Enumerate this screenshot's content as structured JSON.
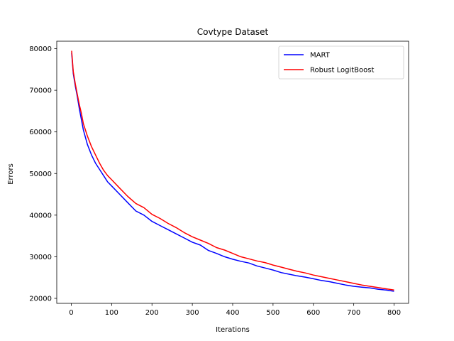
{
  "chart_data": {
    "type": "line",
    "title": "Covtype Dataset",
    "xlabel": "Iterations",
    "ylabel": "Errors",
    "xlim": [
      -36,
      836
    ],
    "ylim": [
      18800,
      81800
    ],
    "xticks": [
      0,
      100,
      200,
      300,
      400,
      500,
      600,
      700,
      800
    ],
    "yticks": [
      20000,
      30000,
      40000,
      50000,
      60000,
      70000,
      80000
    ],
    "grid": false,
    "legend_position": "upper right",
    "series": [
      {
        "name": "MART",
        "color": "#0000ff",
        "x": [
          1,
          5,
          10,
          15,
          20,
          25,
          30,
          40,
          50,
          60,
          70,
          80,
          90,
          100,
          120,
          140,
          160,
          180,
          200,
          220,
          240,
          260,
          280,
          300,
          320,
          340,
          360,
          380,
          400,
          420,
          440,
          460,
          480,
          500,
          520,
          540,
          560,
          580,
          600,
          620,
          640,
          660,
          680,
          700,
          720,
          740,
          760,
          780,
          800
        ],
        "y": [
          79000,
          74000,
          71000,
          68500,
          65500,
          63000,
          60500,
          57000,
          54500,
          52500,
          51000,
          49500,
          48000,
          47000,
          45000,
          43000,
          41000,
          40000,
          38500,
          37500,
          36500,
          35500,
          34500,
          33500,
          32800,
          31500,
          30800,
          30000,
          29400,
          28900,
          28500,
          27800,
          27300,
          26800,
          26200,
          25800,
          25400,
          25100,
          24700,
          24300,
          24000,
          23600,
          23200,
          22900,
          22700,
          22500,
          22200,
          22000,
          21700
        ]
      },
      {
        "name": "Robust LogitBoost",
        "color": "#ff0000",
        "x": [
          1,
          5,
          10,
          15,
          20,
          25,
          30,
          40,
          50,
          60,
          70,
          80,
          90,
          100,
          120,
          140,
          160,
          180,
          200,
          220,
          240,
          260,
          280,
          300,
          320,
          340,
          360,
          380,
          400,
          420,
          440,
          460,
          480,
          500,
          520,
          540,
          560,
          580,
          600,
          620,
          640,
          660,
          680,
          700,
          720,
          740,
          760,
          780,
          800
        ],
        "y": [
          79500,
          74500,
          71500,
          69000,
          66500,
          64500,
          62000,
          59000,
          56500,
          54500,
          52500,
          50800,
          49500,
          48500,
          46500,
          44500,
          42800,
          41800,
          40200,
          39200,
          38000,
          37000,
          35800,
          34800,
          34000,
          33200,
          32200,
          31600,
          30800,
          30000,
          29500,
          29000,
          28600,
          28000,
          27500,
          27000,
          26500,
          26100,
          25600,
          25200,
          24800,
          24400,
          24000,
          23600,
          23200,
          22900,
          22600,
          22300,
          22000
        ]
      }
    ]
  }
}
